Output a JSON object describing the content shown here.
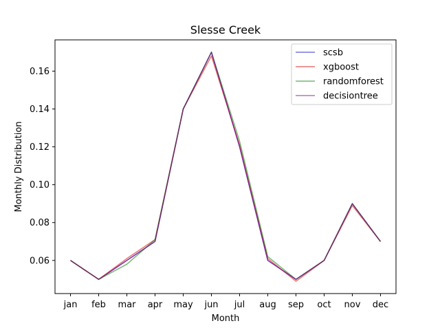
{
  "chart_data": {
    "type": "line",
    "title": "Slesse Creek",
    "xlabel": "Month",
    "ylabel": "Monthly Distribution",
    "categories": [
      "jan",
      "feb",
      "mar",
      "apr",
      "may",
      "jun",
      "jul",
      "aug",
      "sep",
      "oct",
      "nov",
      "dec"
    ],
    "ylim": [
      0.0425,
      0.1765
    ],
    "yticks": [
      "0.06",
      "0.08",
      "0.10",
      "0.12",
      "0.14",
      "0.16"
    ],
    "legend_position": "top-right",
    "series": [
      {
        "name": "scsb",
        "color": "#0000cc",
        "values": [
          0.06,
          0.05,
          0.06,
          0.07,
          0.14,
          0.17,
          0.12,
          0.06,
          0.05,
          0.06,
          0.09,
          0.07
        ]
      },
      {
        "name": "xgboost",
        "color": "#dd0000",
        "values": [
          0.06,
          0.05,
          0.061,
          0.071,
          0.14,
          0.168,
          0.121,
          0.061,
          0.049,
          0.06,
          0.089,
          0.07
        ]
      },
      {
        "name": "randomforest",
        "color": "#008000",
        "values": [
          0.06,
          0.05,
          0.058,
          0.071,
          0.14,
          0.17,
          0.123,
          0.062,
          0.05,
          0.06,
          0.09,
          0.07
        ]
      },
      {
        "name": "decisiontree",
        "color": "#800080",
        "values": [
          0.06,
          0.05,
          0.06,
          0.07,
          0.14,
          0.17,
          0.12,
          0.06,
          0.05,
          0.06,
          0.09,
          0.07
        ]
      }
    ]
  }
}
